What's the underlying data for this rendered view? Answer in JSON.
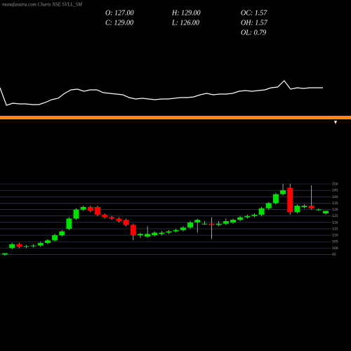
{
  "chart_data": [
    {
      "type": "candlestick",
      "title": "munafasutra.com Charts NSE SVLL_SM",
      "annotations": [
        "O: 127.00",
        "H: 129.00",
        "OC: 1.57",
        "C: 129.00",
        "L: 126.00",
        "OH: 1.57",
        "OL: 0.79"
      ],
      "open": [
        95,
        100,
        103,
        101,
        101.5,
        102,
        104,
        106,
        110,
        115,
        123,
        130,
        132,
        132,
        126,
        124,
        123,
        122,
        118,
        110,
        109,
        110,
        111,
        112,
        113,
        114,
        116,
        120,
        119,
        119,
        118,
        119,
        120,
        122,
        124,
        125,
        126,
        131,
        135,
        142,
        147,
        128,
        132,
        133,
        130,
        127
      ],
      "high": [
        96,
        104,
        104,
        102.5,
        103,
        105,
        107,
        111,
        114,
        124,
        131,
        133,
        133,
        133,
        127,
        125,
        124,
        123,
        119,
        112,
        117,
        113,
        113,
        114,
        115,
        117,
        121,
        123,
        121,
        124,
        121,
        123,
        123,
        125,
        126,
        127,
        132,
        136,
        143,
        150,
        150,
        134,
        134,
        149,
        131,
        129
      ],
      "low": [
        94,
        99,
        100,
        100,
        100.5,
        101,
        103,
        105,
        109,
        114,
        122,
        129,
        128,
        125,
        123,
        122,
        120,
        117,
        106,
        108,
        108,
        109,
        110,
        111,
        112,
        113,
        115,
        112,
        118,
        107,
        117,
        118,
        119,
        121,
        123,
        124,
        125,
        130,
        134,
        141,
        126,
        127,
        131,
        130,
        129,
        126
      ],
      "close": [
        96,
        103,
        101,
        101.5,
        102,
        104,
        106,
        110,
        113,
        123,
        130,
        132,
        129,
        126,
        124,
        123,
        121,
        118,
        110,
        111,
        111,
        112,
        112,
        113,
        114,
        116,
        120,
        122,
        119,
        118,
        119,
        121,
        122,
        124,
        125,
        126,
        131,
        135,
        142,
        145,
        128,
        133,
        133,
        131,
        130,
        129
      ],
      "up_color": "#00e000",
      "down_color": "#ff0000",
      "ylim": [
        92,
        150
      ],
      "yticks": [
        95,
        100,
        105,
        110,
        115,
        120,
        125,
        130,
        135,
        140,
        145,
        150
      ],
      "grid": true
    },
    {
      "type": "line",
      "color": "#ffffff",
      "values": [
        35,
        10,
        13,
        12,
        12,
        11,
        11,
        14,
        18,
        20,
        27,
        32,
        33,
        30,
        32,
        32,
        28,
        27,
        26,
        25,
        21,
        19,
        20,
        19,
        18,
        19,
        19,
        20,
        21,
        21,
        22,
        25,
        27,
        25,
        26,
        26,
        27,
        30,
        31,
        30,
        31,
        32,
        35,
        36,
        45,
        33,
        35,
        34,
        35,
        35,
        35
      ],
      "ylim": [
        0,
        50
      ]
    }
  ]
}
